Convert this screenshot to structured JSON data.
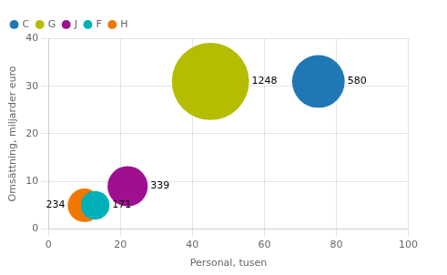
{
  "chart_data": {
    "type": "bubble",
    "xlabel": "Personal, tusen",
    "ylabel": "Omsättning, miljarder euro",
    "series": [
      {
        "name": "C",
        "color": "#1f78b4",
        "x": [
          75
        ],
        "y": [
          31
        ],
        "size": [
          580
        ]
      },
      {
        "name": "G",
        "color": "#b5bd00",
        "x": [
          45
        ],
        "y": [
          31
        ],
        "size": [
          1248
        ]
      },
      {
        "name": "J",
        "color": "#9e1090",
        "x": [
          22
        ],
        "y": [
          9
        ],
        "size": [
          339
        ]
      },
      {
        "name": "F",
        "color": "#00b0b9",
        "x": [
          13
        ],
        "y": [
          5
        ],
        "size": [
          171
        ]
      },
      {
        "name": "H",
        "color": "#f07800",
        "x": [
          10
        ],
        "y": [
          5
        ],
        "size": [
          234
        ]
      }
    ],
    "xlim": [
      0,
      100
    ],
    "xticks": [
      0,
      20,
      40,
      60,
      80,
      100
    ],
    "ylim": [
      0,
      40
    ],
    "yticks": [
      0,
      10,
      20,
      30,
      40
    ],
    "grid": true,
    "legend": "upper left",
    "data_labels": true
  }
}
